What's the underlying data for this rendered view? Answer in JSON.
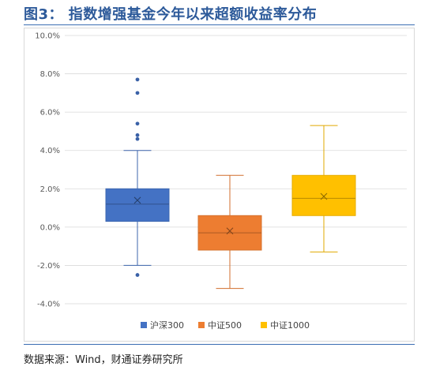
{
  "header": {
    "title": "图3： 指数增强基金今年以来超额收益率分布"
  },
  "footer": {
    "source": "数据来源：Wind，财通证券研究所"
  },
  "chart_data": {
    "type": "box",
    "title": "",
    "xlabel": "",
    "ylabel": "",
    "ylim": [
      -0.04,
      0.1
    ],
    "yticks": [
      "10.0%",
      "8.0%",
      "6.0%",
      "4.0%",
      "2.0%",
      "0.0%",
      "-2.0%",
      "-4.0%"
    ],
    "grid": true,
    "legend_position": "bottom",
    "series": [
      {
        "name": "沪深300",
        "color": "#4472c4",
        "min": -0.02,
        "q1": 0.003,
        "median": 0.012,
        "q3": 0.02,
        "max": 0.04,
        "mean": 0.014,
        "outliers": [
          0.077,
          0.07,
          0.054,
          0.048,
          0.046,
          -0.025
        ]
      },
      {
        "name": "中证500",
        "color": "#ed7d31",
        "min": -0.032,
        "q1": -0.012,
        "median": -0.003,
        "q3": 0.006,
        "max": 0.027,
        "mean": -0.002,
        "outliers": []
      },
      {
        "name": "中证1000",
        "color": "#ffc000",
        "min": -0.013,
        "q1": 0.006,
        "median": 0.015,
        "q3": 0.027,
        "max": 0.053,
        "mean": 0.016,
        "outliers": []
      }
    ]
  }
}
